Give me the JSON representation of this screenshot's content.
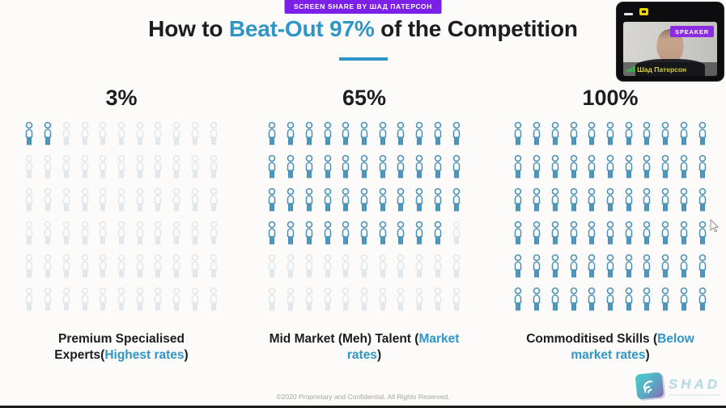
{
  "meeting": {
    "screen_share_banner": "SCREEN SHARE BY ШАД ПАТЕРСОН",
    "speaker_badge": "SPEAKER",
    "participant_name": "Шад Патерсон"
  },
  "slide": {
    "title": {
      "prefix": "How to ",
      "highlight": "Beat-Out 97%",
      "suffix": " of the Competition"
    },
    "columns": [
      {
        "percent": "3%",
        "grid": {
          "rows": 6,
          "cols": 11,
          "total": 66,
          "highlighted": 2
        },
        "label": {
          "prefix": "Premium Specialised Experts(",
          "highlight": "Highest rates",
          "suffix": ")"
        }
      },
      {
        "percent": "65%",
        "grid": {
          "rows": 6,
          "cols": 11,
          "total": 66,
          "highlighted": 43
        },
        "label": {
          "prefix": "Mid Market (Meh) Talent (",
          "highlight": "Market rates",
          "suffix": ")"
        }
      },
      {
        "percent": "100%",
        "grid": {
          "rows": 6,
          "cols": 11,
          "total": 66,
          "highlighted": 66
        },
        "label": {
          "prefix": "Commoditised Skills (",
          "highlight": "Below market rates",
          "suffix": ")"
        }
      }
    ],
    "footer": "©2020 Proprietary and Confidential. All Rights Reserved.",
    "watermark": "SHAD"
  },
  "colors": {
    "accent_blue": "#2e96c6",
    "icon_active": "#4a92b8",
    "icon_inactive": "#e2e7ec",
    "banner_purple": "#7c1fe8",
    "speaker_badge_purple": "#8b2be2",
    "name_yellow": "#d8ce3a"
  },
  "chart_data": {
    "type": "bar",
    "variant": "pictogram-grid",
    "title": "How to Beat-Out 97% of the Competition",
    "categories": [
      "Premium Specialised Experts (Highest rates)",
      "Mid Market (Meh) Talent (Market rates)",
      "Commoditised Skills (Below market rates)"
    ],
    "values": [
      3,
      65,
      100
    ],
    "units": "%",
    "icons_per_category": 66,
    "highlighted_icons": [
      2,
      43,
      66
    ],
    "legend_position": "none",
    "grid": false
  }
}
